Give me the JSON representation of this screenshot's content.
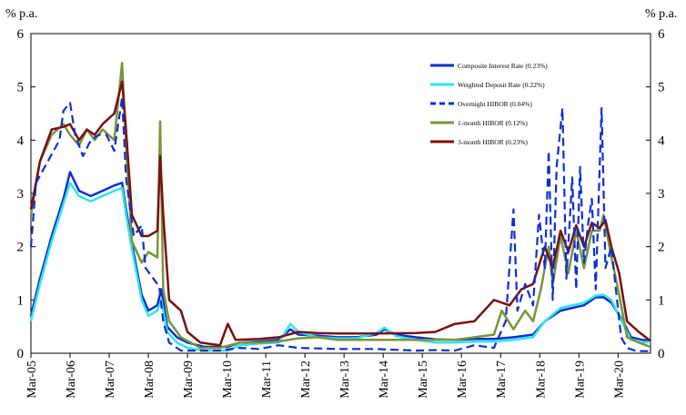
{
  "chart_data": {
    "type": "line",
    "ylabel_left": "% p.a.",
    "ylabel_right": "% p.a.",
    "ylim": [
      0,
      6
    ],
    "y_ticks": [
      "0",
      "1",
      "2",
      "3",
      "4",
      "5",
      "6"
    ],
    "x_range": [
      2005.17,
      2021.0
    ],
    "x_ticks": [
      {
        "label": "Mar-05",
        "x": 2005.17
      },
      {
        "label": "Mar-06",
        "x": 2006.17
      },
      {
        "label": "Mar-07",
        "x": 2007.17
      },
      {
        "label": "Mar-08",
        "x": 2008.17
      },
      {
        "label": "Mar-09",
        "x": 2009.17
      },
      {
        "label": "Mar-10",
        "x": 2010.17
      },
      {
        "label": "Mar-11",
        "x": 2011.17
      },
      {
        "label": "Mar-12",
        "x": 2012.17
      },
      {
        "label": "Mar-13",
        "x": 2013.17
      },
      {
        "label": "Mar-14",
        "x": 2014.17
      },
      {
        "label": "Mar-15",
        "x": 2015.17
      },
      {
        "label": "Mar-16",
        "x": 2016.17
      },
      {
        "label": "Mar-17",
        "x": 2017.17
      },
      {
        "label": "Mar-18",
        "x": 2018.17
      },
      {
        "label": "Mar-19",
        "x": 2019.17
      },
      {
        "label": "Mar-20",
        "x": 2020.17
      }
    ],
    "grid": false,
    "legend_position": "top-center",
    "series": [
      {
        "name": "Composite Interest Rate (0.23%)",
        "color": "#0b2fd3",
        "dash": "solid",
        "points": [
          [
            2005.17,
            0.7
          ],
          [
            2005.4,
            1.4
          ],
          [
            2005.7,
            2.2
          ],
          [
            2006.0,
            2.9
          ],
          [
            2006.17,
            3.4
          ],
          [
            2006.4,
            3.05
          ],
          [
            2006.7,
            2.95
          ],
          [
            2007.0,
            3.05
          ],
          [
            2007.3,
            3.15
          ],
          [
            2007.5,
            3.2
          ],
          [
            2007.6,
            2.7
          ],
          [
            2007.75,
            2.05
          ],
          [
            2008.0,
            1.1
          ],
          [
            2008.17,
            0.8
          ],
          [
            2008.4,
            0.9
          ],
          [
            2008.5,
            1.2
          ],
          [
            2008.65,
            0.5
          ],
          [
            2008.9,
            0.3
          ],
          [
            2009.17,
            0.2
          ],
          [
            2009.6,
            0.12
          ],
          [
            2010.2,
            0.12
          ],
          [
            2010.5,
            0.2
          ],
          [
            2011.0,
            0.22
          ],
          [
            2011.5,
            0.25
          ],
          [
            2011.8,
            0.45
          ],
          [
            2012.0,
            0.35
          ],
          [
            2012.5,
            0.33
          ],
          [
            2013.0,
            0.3
          ],
          [
            2013.5,
            0.3
          ],
          [
            2014.0,
            0.35
          ],
          [
            2014.2,
            0.45
          ],
          [
            2014.5,
            0.35
          ],
          [
            2015.0,
            0.3
          ],
          [
            2015.5,
            0.26
          ],
          [
            2016.0,
            0.25
          ],
          [
            2016.5,
            0.27
          ],
          [
            2017.0,
            0.27
          ],
          [
            2017.5,
            0.3
          ],
          [
            2018.0,
            0.35
          ],
          [
            2018.3,
            0.6
          ],
          [
            2018.7,
            0.8
          ],
          [
            2019.0,
            0.85
          ],
          [
            2019.3,
            0.9
          ],
          [
            2019.6,
            1.05
          ],
          [
            2019.8,
            1.05
          ],
          [
            2020.0,
            0.95
          ],
          [
            2020.3,
            0.6
          ],
          [
            2020.5,
            0.3
          ],
          [
            2020.8,
            0.25
          ],
          [
            2021.0,
            0.23
          ]
        ]
      },
      {
        "name": "Weighted Deposit Rate (0.22%)",
        "color": "#2fe6ec",
        "dash": "solid",
        "points": [
          [
            2005.17,
            0.6
          ],
          [
            2005.4,
            1.3
          ],
          [
            2005.7,
            2.1
          ],
          [
            2006.0,
            2.8
          ],
          [
            2006.17,
            3.2
          ],
          [
            2006.4,
            2.95
          ],
          [
            2006.7,
            2.85
          ],
          [
            2007.0,
            2.95
          ],
          [
            2007.3,
            3.05
          ],
          [
            2007.5,
            3.1
          ],
          [
            2007.6,
            2.6
          ],
          [
            2007.75,
            1.95
          ],
          [
            2008.0,
            1.0
          ],
          [
            2008.17,
            0.7
          ],
          [
            2008.4,
            0.8
          ],
          [
            2008.5,
            1.0
          ],
          [
            2008.65,
            0.4
          ],
          [
            2008.9,
            0.2
          ],
          [
            2009.17,
            0.1
          ],
          [
            2009.6,
            0.05
          ],
          [
            2010.2,
            0.05
          ],
          [
            2010.5,
            0.15
          ],
          [
            2011.0,
            0.18
          ],
          [
            2011.5,
            0.2
          ],
          [
            2011.8,
            0.55
          ],
          [
            2012.0,
            0.4
          ],
          [
            2012.5,
            0.3
          ],
          [
            2013.0,
            0.28
          ],
          [
            2013.5,
            0.28
          ],
          [
            2014.0,
            0.38
          ],
          [
            2014.2,
            0.48
          ],
          [
            2014.5,
            0.32
          ],
          [
            2015.0,
            0.25
          ],
          [
            2015.5,
            0.2
          ],
          [
            2016.0,
            0.2
          ],
          [
            2016.5,
            0.22
          ],
          [
            2017.0,
            0.22
          ],
          [
            2017.5,
            0.25
          ],
          [
            2018.0,
            0.3
          ],
          [
            2018.3,
            0.6
          ],
          [
            2018.7,
            0.85
          ],
          [
            2019.0,
            0.9
          ],
          [
            2019.3,
            0.95
          ],
          [
            2019.6,
            1.08
          ],
          [
            2019.8,
            1.1
          ],
          [
            2020.0,
            1.0
          ],
          [
            2020.3,
            0.55
          ],
          [
            2020.5,
            0.25
          ],
          [
            2020.8,
            0.2
          ],
          [
            2021.0,
            0.22
          ]
        ]
      },
      {
        "name": "Overnight HIBOR (0.04%)",
        "color": "#0b2fd3",
        "dash": "dashed",
        "points": [
          [
            2005.17,
            2.0
          ],
          [
            2005.3,
            3.2
          ],
          [
            2005.6,
            3.6
          ],
          [
            2005.9,
            4.0
          ],
          [
            2006.0,
            4.55
          ],
          [
            2006.17,
            4.7
          ],
          [
            2006.3,
            4.1
          ],
          [
            2006.5,
            3.7
          ],
          [
            2006.7,
            4.0
          ],
          [
            2006.9,
            4.1
          ],
          [
            2007.1,
            4.1
          ],
          [
            2007.3,
            3.8
          ],
          [
            2007.5,
            4.8
          ],
          [
            2007.6,
            3.3
          ],
          [
            2007.8,
            2.2
          ],
          [
            2008.0,
            2.4
          ],
          [
            2008.1,
            1.6
          ],
          [
            2008.3,
            1.4
          ],
          [
            2008.45,
            1.25
          ],
          [
            2008.55,
            0.6
          ],
          [
            2008.7,
            0.2
          ],
          [
            2009.0,
            0.05
          ],
          [
            2010.0,
            0.05
          ],
          [
            2010.5,
            0.1
          ],
          [
            2011.0,
            0.08
          ],
          [
            2011.5,
            0.15
          ],
          [
            2012.0,
            0.1
          ],
          [
            2013.0,
            0.08
          ],
          [
            2014.0,
            0.08
          ],
          [
            2015.0,
            0.05
          ],
          [
            2015.5,
            0.06
          ],
          [
            2016.0,
            0.05
          ],
          [
            2016.5,
            0.15
          ],
          [
            2017.0,
            0.1
          ],
          [
            2017.3,
            0.6
          ],
          [
            2017.5,
            2.7
          ],
          [
            2017.6,
            0.8
          ],
          [
            2017.8,
            1.3
          ],
          [
            2018.0,
            0.9
          ],
          [
            2018.15,
            2.6
          ],
          [
            2018.3,
            1.6
          ],
          [
            2018.4,
            3.8
          ],
          [
            2018.5,
            1.0
          ],
          [
            2018.6,
            3.5
          ],
          [
            2018.75,
            4.6
          ],
          [
            2018.85,
            1.4
          ],
          [
            2019.0,
            3.3
          ],
          [
            2019.1,
            1.2
          ],
          [
            2019.2,
            3.5
          ],
          [
            2019.3,
            1.7
          ],
          [
            2019.4,
            2.4
          ],
          [
            2019.5,
            2.9
          ],
          [
            2019.6,
            1.2
          ],
          [
            2019.75,
            4.6
          ],
          [
            2019.85,
            1.6
          ],
          [
            2020.0,
            2.0
          ],
          [
            2020.1,
            1.3
          ],
          [
            2020.25,
            0.3
          ],
          [
            2020.4,
            0.1
          ],
          [
            2020.6,
            0.05
          ],
          [
            2020.8,
            0.04
          ],
          [
            2021.0,
            0.04
          ]
        ]
      },
      {
        "name": "1-month HIBOR (0.12%)",
        "color": "#77963a",
        "dash": "solid",
        "points": [
          [
            2005.17,
            2.6
          ],
          [
            2005.4,
            3.6
          ],
          [
            2005.7,
            4.1
          ],
          [
            2006.0,
            4.3
          ],
          [
            2006.17,
            4.1
          ],
          [
            2006.4,
            3.9
          ],
          [
            2006.6,
            4.2
          ],
          [
            2006.8,
            4.0
          ],
          [
            2007.0,
            4.2
          ],
          [
            2007.3,
            4.0
          ],
          [
            2007.5,
            5.45
          ],
          [
            2007.6,
            3.9
          ],
          [
            2007.75,
            2.1
          ],
          [
            2008.0,
            1.7
          ],
          [
            2008.17,
            1.9
          ],
          [
            2008.4,
            1.8
          ],
          [
            2008.47,
            4.35
          ],
          [
            2008.55,
            1.2
          ],
          [
            2008.7,
            0.6
          ],
          [
            2009.0,
            0.3
          ],
          [
            2009.5,
            0.1
          ],
          [
            2010.0,
            0.1
          ],
          [
            2010.5,
            0.2
          ],
          [
            2011.0,
            0.2
          ],
          [
            2011.5,
            0.22
          ],
          [
            2012.0,
            0.28
          ],
          [
            2012.5,
            0.3
          ],
          [
            2013.0,
            0.25
          ],
          [
            2014.0,
            0.25
          ],
          [
            2015.0,
            0.25
          ],
          [
            2015.5,
            0.25
          ],
          [
            2016.0,
            0.25
          ],
          [
            2016.5,
            0.3
          ],
          [
            2017.0,
            0.35
          ],
          [
            2017.2,
            0.8
          ],
          [
            2017.5,
            0.45
          ],
          [
            2017.8,
            0.8
          ],
          [
            2018.0,
            0.6
          ],
          [
            2018.2,
            1.2
          ],
          [
            2018.4,
            2.0
          ],
          [
            2018.5,
            1.3
          ],
          [
            2018.7,
            2.2
          ],
          [
            2018.9,
            1.5
          ],
          [
            2019.1,
            2.3
          ],
          [
            2019.3,
            1.6
          ],
          [
            2019.5,
            2.3
          ],
          [
            2019.7,
            2.3
          ],
          [
            2019.8,
            2.6
          ],
          [
            2020.0,
            1.8
          ],
          [
            2020.2,
            1.1
          ],
          [
            2020.4,
            0.3
          ],
          [
            2020.7,
            0.2
          ],
          [
            2021.0,
            0.12
          ]
        ]
      },
      {
        "name": "3-month HIBOR (0.23%)",
        "color": "#7b0f0f",
        "dash": "solid",
        "points": [
          [
            2005.17,
            2.7
          ],
          [
            2005.4,
            3.6
          ],
          [
            2005.7,
            4.2
          ],
          [
            2006.0,
            4.25
          ],
          [
            2006.17,
            4.3
          ],
          [
            2006.4,
            4.0
          ],
          [
            2006.6,
            4.2
          ],
          [
            2006.8,
            4.1
          ],
          [
            2007.0,
            4.3
          ],
          [
            2007.3,
            4.5
          ],
          [
            2007.5,
            5.1
          ],
          [
            2007.6,
            4.2
          ],
          [
            2007.75,
            2.6
          ],
          [
            2008.0,
            2.2
          ],
          [
            2008.17,
            2.2
          ],
          [
            2008.4,
            2.3
          ],
          [
            2008.47,
            3.7
          ],
          [
            2008.55,
            2.6
          ],
          [
            2008.7,
            1.0
          ],
          [
            2009.0,
            0.8
          ],
          [
            2009.17,
            0.4
          ],
          [
            2009.5,
            0.2
          ],
          [
            2010.0,
            0.15
          ],
          [
            2010.2,
            0.55
          ],
          [
            2010.4,
            0.25
          ],
          [
            2011.0,
            0.27
          ],
          [
            2011.5,
            0.3
          ],
          [
            2012.0,
            0.4
          ],
          [
            2012.5,
            0.38
          ],
          [
            2013.0,
            0.37
          ],
          [
            2014.0,
            0.37
          ],
          [
            2015.0,
            0.38
          ],
          [
            2015.5,
            0.4
          ],
          [
            2016.0,
            0.55
          ],
          [
            2016.5,
            0.6
          ],
          [
            2017.0,
            1.0
          ],
          [
            2017.4,
            0.9
          ],
          [
            2017.7,
            1.2
          ],
          [
            2018.0,
            1.3
          ],
          [
            2018.3,
            2.0
          ],
          [
            2018.5,
            1.6
          ],
          [
            2018.7,
            2.3
          ],
          [
            2018.9,
            1.9
          ],
          [
            2019.1,
            2.4
          ],
          [
            2019.3,
            2.0
          ],
          [
            2019.5,
            2.45
          ],
          [
            2019.7,
            2.35
          ],
          [
            2019.85,
            2.5
          ],
          [
            2020.0,
            2.0
          ],
          [
            2020.2,
            1.5
          ],
          [
            2020.4,
            0.6
          ],
          [
            2020.7,
            0.4
          ],
          [
            2021.0,
            0.23
          ]
        ]
      }
    ]
  }
}
